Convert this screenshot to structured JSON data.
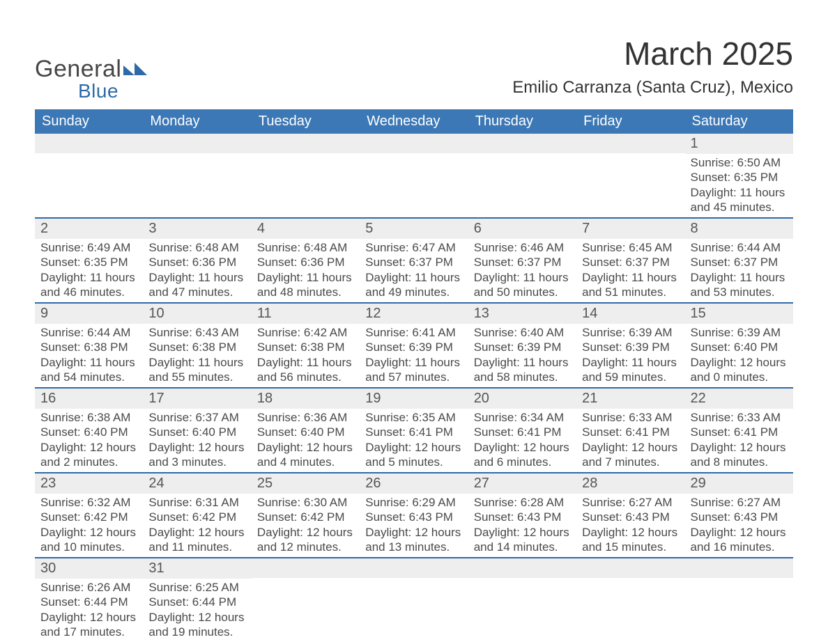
{
  "logo": {
    "text_top": "General",
    "text_bottom": "Blue",
    "shape_color": "#2f6aa8",
    "text_top_color": "#464646",
    "text_bottom_color": "#2f6aa8"
  },
  "header": {
    "title": "March 2025",
    "subtitle": "Emilio Carranza (Santa Cruz), Mexico"
  },
  "colors": {
    "header_bg": "#3b78b5",
    "header_text": "#ffffff",
    "week_border": "#2f6aa8",
    "datebar_bg": "#eeeeee",
    "body_text": "#4a4a4a",
    "page_bg": "#ffffff"
  },
  "day_headers": [
    "Sunday",
    "Monday",
    "Tuesday",
    "Wednesday",
    "Thursday",
    "Friday",
    "Saturday"
  ],
  "weeks": [
    [
      {
        "empty": true
      },
      {
        "empty": true
      },
      {
        "empty": true
      },
      {
        "empty": true
      },
      {
        "empty": true
      },
      {
        "empty": true
      },
      {
        "date": "1",
        "sunrise": "Sunrise: 6:50 AM",
        "sunset": "Sunset: 6:35 PM",
        "daylight1": "Daylight: 11 hours",
        "daylight2": "and 45 minutes."
      }
    ],
    [
      {
        "date": "2",
        "sunrise": "Sunrise: 6:49 AM",
        "sunset": "Sunset: 6:35 PM",
        "daylight1": "Daylight: 11 hours",
        "daylight2": "and 46 minutes."
      },
      {
        "date": "3",
        "sunrise": "Sunrise: 6:48 AM",
        "sunset": "Sunset: 6:36 PM",
        "daylight1": "Daylight: 11 hours",
        "daylight2": "and 47 minutes."
      },
      {
        "date": "4",
        "sunrise": "Sunrise: 6:48 AM",
        "sunset": "Sunset: 6:36 PM",
        "daylight1": "Daylight: 11 hours",
        "daylight2": "and 48 minutes."
      },
      {
        "date": "5",
        "sunrise": "Sunrise: 6:47 AM",
        "sunset": "Sunset: 6:37 PM",
        "daylight1": "Daylight: 11 hours",
        "daylight2": "and 49 minutes."
      },
      {
        "date": "6",
        "sunrise": "Sunrise: 6:46 AM",
        "sunset": "Sunset: 6:37 PM",
        "daylight1": "Daylight: 11 hours",
        "daylight2": "and 50 minutes."
      },
      {
        "date": "7",
        "sunrise": "Sunrise: 6:45 AM",
        "sunset": "Sunset: 6:37 PM",
        "daylight1": "Daylight: 11 hours",
        "daylight2": "and 51 minutes."
      },
      {
        "date": "8",
        "sunrise": "Sunrise: 6:44 AM",
        "sunset": "Sunset: 6:37 PM",
        "daylight1": "Daylight: 11 hours",
        "daylight2": "and 53 minutes."
      }
    ],
    [
      {
        "date": "9",
        "sunrise": "Sunrise: 6:44 AM",
        "sunset": "Sunset: 6:38 PM",
        "daylight1": "Daylight: 11 hours",
        "daylight2": "and 54 minutes."
      },
      {
        "date": "10",
        "sunrise": "Sunrise: 6:43 AM",
        "sunset": "Sunset: 6:38 PM",
        "daylight1": "Daylight: 11 hours",
        "daylight2": "and 55 minutes."
      },
      {
        "date": "11",
        "sunrise": "Sunrise: 6:42 AM",
        "sunset": "Sunset: 6:38 PM",
        "daylight1": "Daylight: 11 hours",
        "daylight2": "and 56 minutes."
      },
      {
        "date": "12",
        "sunrise": "Sunrise: 6:41 AM",
        "sunset": "Sunset: 6:39 PM",
        "daylight1": "Daylight: 11 hours",
        "daylight2": "and 57 minutes."
      },
      {
        "date": "13",
        "sunrise": "Sunrise: 6:40 AM",
        "sunset": "Sunset: 6:39 PM",
        "daylight1": "Daylight: 11 hours",
        "daylight2": "and 58 minutes."
      },
      {
        "date": "14",
        "sunrise": "Sunrise: 6:39 AM",
        "sunset": "Sunset: 6:39 PM",
        "daylight1": "Daylight: 11 hours",
        "daylight2": "and 59 minutes."
      },
      {
        "date": "15",
        "sunrise": "Sunrise: 6:39 AM",
        "sunset": "Sunset: 6:40 PM",
        "daylight1": "Daylight: 12 hours",
        "daylight2": "and 0 minutes."
      }
    ],
    [
      {
        "date": "16",
        "sunrise": "Sunrise: 6:38 AM",
        "sunset": "Sunset: 6:40 PM",
        "daylight1": "Daylight: 12 hours",
        "daylight2": "and 2 minutes."
      },
      {
        "date": "17",
        "sunrise": "Sunrise: 6:37 AM",
        "sunset": "Sunset: 6:40 PM",
        "daylight1": "Daylight: 12 hours",
        "daylight2": "and 3 minutes."
      },
      {
        "date": "18",
        "sunrise": "Sunrise: 6:36 AM",
        "sunset": "Sunset: 6:40 PM",
        "daylight1": "Daylight: 12 hours",
        "daylight2": "and 4 minutes."
      },
      {
        "date": "19",
        "sunrise": "Sunrise: 6:35 AM",
        "sunset": "Sunset: 6:41 PM",
        "daylight1": "Daylight: 12 hours",
        "daylight2": "and 5 minutes."
      },
      {
        "date": "20",
        "sunrise": "Sunrise: 6:34 AM",
        "sunset": "Sunset: 6:41 PM",
        "daylight1": "Daylight: 12 hours",
        "daylight2": "and 6 minutes."
      },
      {
        "date": "21",
        "sunrise": "Sunrise: 6:33 AM",
        "sunset": "Sunset: 6:41 PM",
        "daylight1": "Daylight: 12 hours",
        "daylight2": "and 7 minutes."
      },
      {
        "date": "22",
        "sunrise": "Sunrise: 6:33 AM",
        "sunset": "Sunset: 6:41 PM",
        "daylight1": "Daylight: 12 hours",
        "daylight2": "and 8 minutes."
      }
    ],
    [
      {
        "date": "23",
        "sunrise": "Sunrise: 6:32 AM",
        "sunset": "Sunset: 6:42 PM",
        "daylight1": "Daylight: 12 hours",
        "daylight2": "and 10 minutes."
      },
      {
        "date": "24",
        "sunrise": "Sunrise: 6:31 AM",
        "sunset": "Sunset: 6:42 PM",
        "daylight1": "Daylight: 12 hours",
        "daylight2": "and 11 minutes."
      },
      {
        "date": "25",
        "sunrise": "Sunrise: 6:30 AM",
        "sunset": "Sunset: 6:42 PM",
        "daylight1": "Daylight: 12 hours",
        "daylight2": "and 12 minutes."
      },
      {
        "date": "26",
        "sunrise": "Sunrise: 6:29 AM",
        "sunset": "Sunset: 6:43 PM",
        "daylight1": "Daylight: 12 hours",
        "daylight2": "and 13 minutes."
      },
      {
        "date": "27",
        "sunrise": "Sunrise: 6:28 AM",
        "sunset": "Sunset: 6:43 PM",
        "daylight1": "Daylight: 12 hours",
        "daylight2": "and 14 minutes."
      },
      {
        "date": "28",
        "sunrise": "Sunrise: 6:27 AM",
        "sunset": "Sunset: 6:43 PM",
        "daylight1": "Daylight: 12 hours",
        "daylight2": "and 15 minutes."
      },
      {
        "date": "29",
        "sunrise": "Sunrise: 6:27 AM",
        "sunset": "Sunset: 6:43 PM",
        "daylight1": "Daylight: 12 hours",
        "daylight2": "and 16 minutes."
      }
    ],
    [
      {
        "date": "30",
        "sunrise": "Sunrise: 6:26 AM",
        "sunset": "Sunset: 6:44 PM",
        "daylight1": "Daylight: 12 hours",
        "daylight2": "and 17 minutes."
      },
      {
        "date": "31",
        "sunrise": "Sunrise: 6:25 AM",
        "sunset": "Sunset: 6:44 PM",
        "daylight1": "Daylight: 12 hours",
        "daylight2": "and 19 minutes."
      },
      {
        "empty": true
      },
      {
        "empty": true
      },
      {
        "empty": true
      },
      {
        "empty": true
      },
      {
        "empty": true
      }
    ]
  ]
}
